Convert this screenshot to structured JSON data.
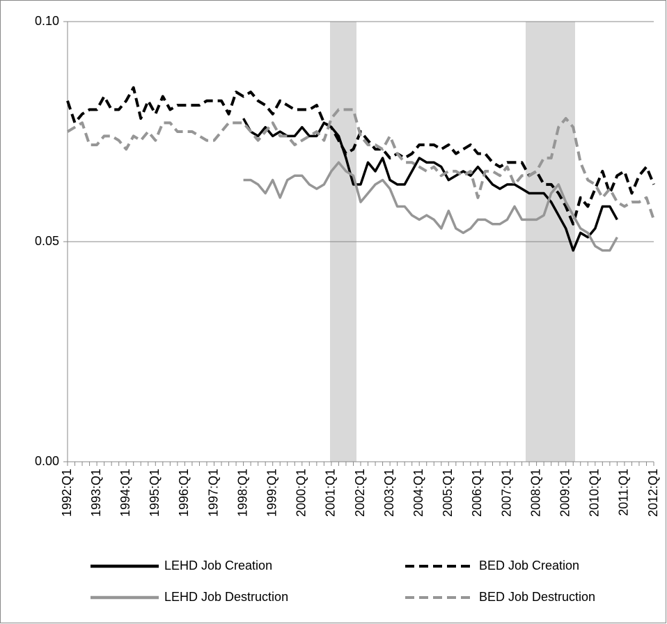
{
  "chart_data": {
    "type": "line",
    "categories": [
      "1992:Q1",
      null,
      null,
      null,
      "1993:Q1",
      null,
      null,
      null,
      "1994:Q1",
      null,
      null,
      null,
      "1995:Q1",
      null,
      null,
      null,
      "1996:Q1",
      null,
      null,
      null,
      "1997:Q1",
      null,
      null,
      null,
      "1998:Q1",
      null,
      null,
      null,
      "1999:Q1",
      null,
      null,
      null,
      "2000:Q1",
      null,
      null,
      null,
      "2001:Q1",
      null,
      null,
      null,
      "2002:Q1",
      null,
      null,
      null,
      "2003:Q1",
      null,
      null,
      null,
      "2004:Q1",
      null,
      null,
      null,
      "2005:Q1",
      null,
      null,
      null,
      "2006:Q1",
      null,
      null,
      null,
      "2007:Q1",
      null,
      null,
      null,
      "2008:Q1",
      null,
      null,
      null,
      "2009:Q1",
      null,
      null,
      null,
      "2010:Q1",
      null,
      null,
      null,
      "2011:Q1",
      null,
      null,
      null,
      "2012:Q1"
    ],
    "ylim": [
      0,
      0.1
    ],
    "yticks": [
      {
        "value": 0,
        "label": "0.00"
      },
      {
        "value": 0.05,
        "label": "0.05"
      },
      {
        "value": 0.1,
        "label": "0.10"
      }
    ],
    "grid": true,
    "legend": "bottom",
    "series": [
      {
        "name": "LEHD Job Creation",
        "color": "#000000",
        "dashed": false,
        "values": [
          null,
          null,
          null,
          null,
          null,
          null,
          null,
          null,
          null,
          null,
          null,
          null,
          null,
          null,
          null,
          null,
          null,
          null,
          null,
          null,
          null,
          null,
          null,
          null,
          0.078,
          0.075,
          0.074,
          0.076,
          0.074,
          0.075,
          0.074,
          0.074,
          0.076,
          0.074,
          0.074,
          0.077,
          0.076,
          0.074,
          0.069,
          0.063,
          0.063,
          0.068,
          0.066,
          0.069,
          0.064,
          0.063,
          0.063,
          0.066,
          0.069,
          0.068,
          0.068,
          0.067,
          0.064,
          0.065,
          0.066,
          0.065,
          0.067,
          0.065,
          0.063,
          0.062,
          0.063,
          0.063,
          0.062,
          0.061,
          0.061,
          0.061,
          0.059,
          0.056,
          0.053,
          0.048,
          0.052,
          0.051,
          0.053,
          0.058,
          0.058,
          0.055,
          null,
          null,
          null,
          null,
          null
        ]
      },
      {
        "name": "BED Job Creation",
        "color": "#000000",
        "dashed": true,
        "values": [
          0.082,
          0.077,
          0.079,
          0.08,
          0.08,
          0.083,
          0.08,
          0.08,
          0.082,
          0.085,
          0.078,
          0.082,
          0.079,
          0.083,
          0.08,
          0.081,
          0.081,
          0.081,
          0.081,
          0.082,
          0.082,
          0.082,
          0.079,
          0.084,
          0.083,
          0.084,
          0.082,
          0.081,
          0.079,
          0.082,
          0.081,
          0.08,
          0.08,
          0.08,
          0.081,
          0.077,
          0.076,
          0.073,
          0.07,
          0.071,
          0.075,
          0.073,
          0.071,
          0.071,
          0.069,
          0.07,
          0.069,
          0.07,
          0.072,
          0.072,
          0.072,
          0.071,
          0.072,
          0.07,
          0.071,
          0.072,
          0.07,
          0.07,
          0.068,
          0.067,
          0.068,
          0.068,
          0.068,
          0.065,
          0.066,
          0.063,
          0.063,
          0.061,
          0.058,
          0.054,
          0.06,
          0.058,
          0.062,
          0.066,
          0.061,
          0.065,
          0.066,
          0.061,
          0.065,
          0.067,
          0.063
        ]
      },
      {
        "name": "LEHD Job Destruction",
        "color": "#969696",
        "dashed": false,
        "values": [
          null,
          null,
          null,
          null,
          null,
          null,
          null,
          null,
          null,
          null,
          null,
          null,
          null,
          null,
          null,
          null,
          null,
          null,
          null,
          null,
          null,
          null,
          null,
          null,
          0.064,
          0.064,
          0.063,
          0.061,
          0.064,
          0.06,
          0.064,
          0.065,
          0.065,
          0.063,
          0.062,
          0.063,
          0.066,
          0.068,
          0.066,
          0.065,
          0.059,
          0.061,
          0.063,
          0.064,
          0.062,
          0.058,
          0.058,
          0.056,
          0.055,
          0.056,
          0.055,
          0.053,
          0.057,
          0.053,
          0.052,
          0.053,
          0.055,
          0.055,
          0.054,
          0.054,
          0.055,
          0.058,
          0.055,
          0.055,
          0.055,
          0.056,
          0.061,
          0.063,
          0.059,
          0.056,
          0.053,
          0.052,
          0.049,
          0.048,
          0.048,
          0.051,
          null,
          null,
          null,
          null,
          null
        ]
      },
      {
        "name": "BED Job Destruction",
        "color": "#969696",
        "dashed": true,
        "values": [
          0.075,
          0.076,
          0.077,
          0.072,
          0.072,
          0.074,
          0.074,
          0.073,
          0.071,
          0.074,
          0.073,
          0.075,
          0.073,
          0.077,
          0.077,
          0.075,
          0.075,
          0.075,
          0.074,
          0.073,
          0.073,
          0.075,
          0.077,
          0.077,
          0.077,
          0.075,
          0.073,
          0.075,
          0.077,
          0.074,
          0.074,
          0.072,
          0.073,
          0.074,
          0.075,
          0.073,
          0.078,
          0.08,
          0.08,
          0.08,
          0.074,
          0.072,
          0.072,
          0.071,
          0.074,
          0.07,
          0.068,
          0.068,
          0.067,
          0.066,
          0.067,
          0.065,
          0.066,
          0.066,
          0.065,
          0.066,
          0.06,
          0.066,
          0.066,
          0.065,
          0.067,
          0.063,
          0.065,
          0.065,
          0.066,
          0.069,
          0.069,
          0.076,
          0.078,
          0.076,
          0.068,
          0.064,
          0.063,
          0.06,
          0.062,
          0.059,
          0.058,
          0.059,
          0.059,
          0.06,
          0.055
        ]
      }
    ]
  }
}
